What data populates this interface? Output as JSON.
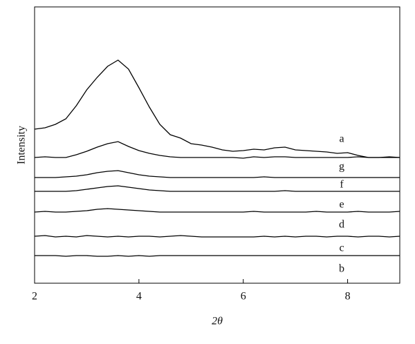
{
  "chart_data": {
    "type": "line",
    "xlabel": "2θ",
    "ylabel": "Intensity",
    "x": [
      2,
      2.2,
      2.4,
      2.6,
      2.8,
      3,
      3.2,
      3.4,
      3.6,
      3.8,
      4,
      4.2,
      4.4,
      4.6,
      4.8,
      5,
      5.2,
      5.4,
      5.6,
      5.8,
      6,
      6.2,
      6.4,
      6.6,
      6.8,
      7,
      7.2,
      7.4,
      7.6,
      7.8,
      8,
      8.2,
      8.4,
      8.6,
      8.8,
      9
    ],
    "xlim": [
      2,
      9
    ],
    "xticks": [
      2,
      4,
      6,
      8
    ],
    "ylim": [
      0,
      400
    ],
    "series": [
      {
        "name": "a",
        "color": "#000000",
        "values": [
          223,
          225,
          230,
          238,
          257,
          280,
          298,
          314,
          323,
          310,
          283,
          255,
          230,
          215,
          210,
          202,
          200,
          197,
          193,
          191,
          192,
          194,
          193,
          196,
          197,
          193,
          192,
          191,
          190,
          188,
          189,
          185,
          182,
          182,
          183,
          182
        ]
      },
      {
        "name": "g",
        "color": "#000000",
        "values": [
          182,
          183,
          182,
          182,
          186,
          191,
          197,
          202,
          205,
          198,
          192,
          188,
          185,
          183,
          182,
          182,
          182,
          182,
          182,
          182,
          181,
          183,
          182,
          183,
          183,
          182,
          182,
          182,
          182,
          182,
          182,
          183,
          182,
          182,
          182,
          182
        ]
      },
      {
        "name": "f",
        "color": "#000000",
        "values": [
          153,
          153,
          153,
          154,
          155,
          157,
          160,
          162,
          163,
          160,
          157,
          155,
          154,
          153,
          153,
          153,
          153,
          153,
          153,
          153,
          153,
          153,
          154,
          153,
          153,
          153,
          153,
          153,
          153,
          153,
          153,
          153,
          153,
          153,
          153,
          153
        ]
      },
      {
        "name": "e",
        "color": "#000000",
        "values": [
          133,
          133,
          133,
          133,
          134,
          136,
          138,
          140,
          141,
          139,
          137,
          135,
          134,
          133,
          133,
          133,
          133,
          133,
          133,
          133,
          133,
          133,
          133,
          133,
          134,
          133,
          133,
          133,
          133,
          133,
          133,
          133,
          133,
          133,
          133,
          133
        ]
      },
      {
        "name": "d",
        "color": "#000000",
        "values": [
          103,
          104,
          103,
          103,
          104,
          105,
          107,
          108,
          107,
          106,
          105,
          104,
          103,
          103,
          103,
          103,
          103,
          103,
          103,
          103,
          103,
          104,
          103,
          103,
          103,
          103,
          103,
          104,
          103,
          103,
          103,
          104,
          103,
          103,
          103,
          104
        ]
      },
      {
        "name": "c",
        "color": "#000000",
        "values": [
          68,
          69,
          67,
          68,
          67,
          69,
          68,
          67,
          68,
          67,
          68,
          68,
          67,
          68,
          69,
          68,
          67,
          67,
          67,
          67,
          67,
          67,
          68,
          67,
          68,
          67,
          68,
          68,
          67,
          68,
          68,
          67,
          68,
          68,
          67,
          68
        ]
      },
      {
        "name": "b",
        "color": "#000000",
        "values": [
          40,
          40,
          40,
          39,
          40,
          40,
          39,
          39,
          40,
          39,
          40,
          39,
          40,
          40,
          40,
          40,
          40,
          40,
          40,
          40,
          40,
          40,
          40,
          40,
          40,
          40,
          40,
          40,
          40,
          40,
          40,
          40,
          40,
          40,
          40,
          40
        ]
      }
    ]
  }
}
